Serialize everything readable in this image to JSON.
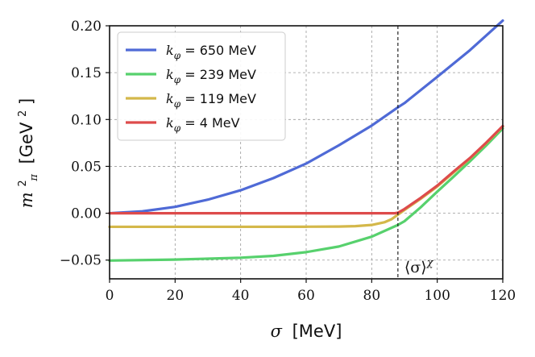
{
  "chart_data": {
    "type": "line",
    "title": "",
    "xlabel": {
      "symbol": "σ",
      "unit": "[MeV]"
    },
    "ylabel": {
      "symbol": "m",
      "sub": "π",
      "sup": "2",
      "unit_pre": "[GeV",
      "unit_sup": "2",
      "unit_post": "]"
    },
    "xlim": [
      0,
      120
    ],
    "ylim": [
      -0.07,
      0.2
    ],
    "xticks": [
      0,
      20,
      40,
      60,
      80,
      100,
      120
    ],
    "yticks": [
      -0.05,
      0.0,
      0.05,
      0.1,
      0.15,
      0.2
    ],
    "ytick_labels": [
      "−0.05",
      "0.00",
      "0.05",
      "0.10",
      "0.15",
      "0.20"
    ],
    "grid": true,
    "legend_position": "top-left",
    "vline": {
      "x": 88,
      "label": "⟨σ⟩",
      "label_sup": "χ"
    },
    "series": [
      {
        "name": "k",
        "name_sub": "φ",
        "name_value": " = 650 MeV",
        "color": "#4f6ad6",
        "x": [
          0,
          10,
          20,
          30,
          40,
          50,
          60,
          70,
          80,
          88,
          90,
          100,
          110,
          120
        ],
        "y": [
          0.0,
          0.002,
          0.0068,
          0.0145,
          0.0245,
          0.0375,
          0.053,
          0.0725,
          0.0935,
          0.113,
          0.1175,
          0.1455,
          0.174,
          0.2055
        ]
      },
      {
        "name": "k",
        "name_sub": "φ",
        "name_value": " = 239 MeV",
        "color": "#57d16d",
        "x": [
          0,
          20,
          40,
          50,
          60,
          70,
          80,
          88,
          90,
          95,
          100,
          105,
          110,
          115,
          120
        ],
        "y": [
          -0.0505,
          -0.0495,
          -0.0475,
          -0.0455,
          -0.0415,
          -0.0355,
          -0.025,
          -0.0125,
          -0.0085,
          0.0065,
          0.023,
          0.039,
          0.0555,
          0.0725,
          0.0905
        ]
      },
      {
        "name": "k",
        "name_sub": "φ",
        "name_value": " = 119 MeV",
        "color": "#d4b84a",
        "x": [
          0,
          20,
          40,
          60,
          70,
          75,
          80,
          84,
          86,
          88,
          90,
          95,
          100,
          105,
          110,
          115,
          120
        ],
        "y": [
          -0.0145,
          -0.0145,
          -0.0145,
          -0.0144,
          -0.0142,
          -0.0138,
          -0.0125,
          -0.0095,
          -0.0065,
          -0.0015,
          0.0035,
          0.0155,
          0.0285,
          0.0435,
          0.0585,
          0.075,
          0.0925
        ]
      },
      {
        "name": "k",
        "name_sub": "φ",
        "name_value": " = 4 MeV",
        "color": "#dd4b4b",
        "x": [
          0,
          20,
          40,
          60,
          80,
          87,
          88,
          90,
          95,
          100,
          105,
          110,
          115,
          120
        ],
        "y": [
          0.0,
          0.0,
          0.0,
          0.0,
          0.0,
          0.0,
          0.0005,
          0.0045,
          0.0165,
          0.0295,
          0.0445,
          0.059,
          0.0755,
          0.093
        ]
      }
    ]
  }
}
